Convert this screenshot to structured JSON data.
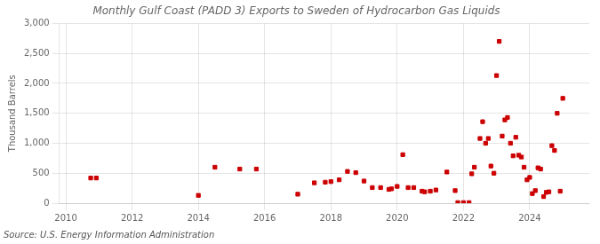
{
  "chart_data": {
    "type": "scatter",
    "title": "Monthly Gulf Coast (PADD 3) Exports to Sweden of Hydrocarbon Gas Liquids",
    "ylabel": "Thousand Barrels",
    "annotations": [
      "Source: U.S. Energy Information Administration"
    ],
    "color": "#cc0000",
    "marker": "square",
    "grid": true,
    "xlim": [
      2009.8,
      2025.8
    ],
    "ylim": [
      0,
      3000
    ],
    "xticks": [
      2010,
      2012,
      2014,
      2016,
      2018,
      2020,
      2022,
      2024
    ],
    "yticks": [
      0,
      500,
      {
        "value": 1000,
        "label": "1,000"
      },
      {
        "value": 1500,
        "label": "1,500"
      },
      {
        "value": 2000,
        "label": "2,000"
      },
      {
        "value": 2500,
        "label": "2,500"
      },
      {
        "value": 3000,
        "label": "3,000"
      }
    ],
    "x": [
      2010.75,
      2010.92,
      2014.0,
      2014.5,
      2015.25,
      2015.75,
      2017.0,
      2017.5,
      2017.83,
      2018.0,
      2018.25,
      2018.5,
      2018.75,
      2019.0,
      2019.25,
      2019.5,
      2019.75,
      2019.83,
      2020.0,
      2020.17,
      2020.33,
      2020.5,
      2020.75,
      2020.83,
      2021.0,
      2021.17,
      2021.5,
      2021.75,
      2021.83,
      2022.0,
      2022.17,
      2022.25,
      2022.33,
      2022.5,
      2022.58,
      2022.67,
      2022.75,
      2022.83,
      2022.92,
      2023.0,
      2023.08,
      2023.17,
      2023.25,
      2023.33,
      2023.42,
      2023.5,
      2023.58,
      2023.67,
      2023.75,
      2023.83,
      2023.92,
      2024.0,
      2024.08,
      2024.17,
      2024.25,
      2024.33,
      2024.42,
      2024.5,
      2024.58,
      2024.67,
      2024.75,
      2024.83,
      2024.92,
      2025.0
    ],
    "values": [
      420,
      420,
      130,
      600,
      570,
      570,
      150,
      340,
      350,
      360,
      390,
      530,
      510,
      370,
      260,
      260,
      230,
      240,
      280,
      810,
      260,
      260,
      200,
      190,
      200,
      220,
      520,
      210,
      10,
      10,
      10,
      490,
      600,
      1080,
      1360,
      1000,
      1080,
      620,
      500,
      2130,
      2700,
      1120,
      1390,
      1430,
      1000,
      790,
      1100,
      800,
      770,
      600,
      390,
      430,
      160,
      210,
      590,
      570,
      110,
      180,
      190,
      960,
      880,
      1500,
      200,
      1750
    ]
  }
}
